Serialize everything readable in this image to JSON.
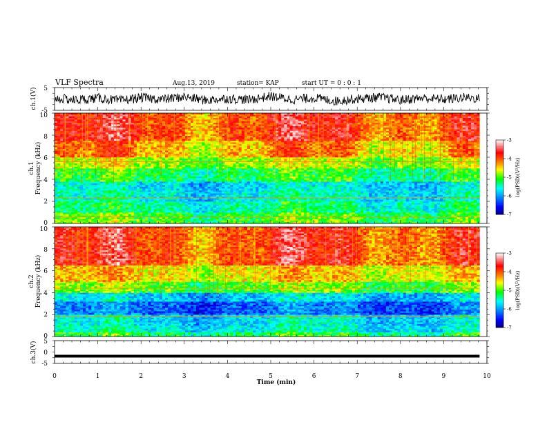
{
  "header": {
    "title": "VLF Spectra",
    "date": "Aug.13, 2019",
    "station": "station= KAP",
    "start_ut": "start  UT  =   0 : 0  : 1"
  },
  "colorbar": {
    "label": "log(PSD)(V²/Hz)",
    "ticks": [
      "-3",
      "-4",
      "-5",
      "-6",
      "-7"
    ],
    "range": [
      -7,
      -3
    ],
    "colors": [
      "#000080",
      "#0000ff",
      "#00a0ff",
      "#00ffff",
      "#00ff00",
      "#ffff00",
      "#ff8000",
      "#ff0000",
      "#ffffff"
    ]
  },
  "chart_data": [
    {
      "type": "line",
      "title": "",
      "ylabel": "ch.1(V)",
      "ylim": [
        -5,
        5
      ],
      "yticks": [
        "5",
        "-5"
      ],
      "xlim": [
        0,
        10
      ],
      "description_series": [
        {
          "x": [
            0,
            0.5,
            1,
            1.5,
            2,
            2.5,
            3,
            3.5,
            4,
            4.5,
            5,
            5.5,
            6,
            6.5,
            7,
            7.5,
            8,
            8.5,
            9,
            9.5,
            9.83
          ],
          "values": [
            0.3,
            -0.5,
            0.4,
            -0.8,
            0.6,
            -0.2,
            0.9,
            -0.6,
            0.2,
            -0.4,
            1.2,
            -0.3,
            0.5,
            -0.9,
            0.1,
            0.7,
            -0.5,
            0.4,
            -0.2,
            0.6,
            0.2
          ]
        }
      ]
    },
    {
      "type": "heatmap",
      "title": "",
      "ylabel": "ch.1\nFrequency  (kHz)",
      "ylabel_lines": [
        "ch.1",
        "Frequency  (kHz)"
      ],
      "ylim": [
        0,
        10
      ],
      "yticks": [
        "0",
        "2",
        "4",
        "6",
        "8",
        "10"
      ],
      "xlim": [
        0,
        10
      ],
      "x_end": 9.83,
      "bands_kHz": [
        {
          "from": 0,
          "to": 0.4,
          "log_psd": -5.0
        },
        {
          "from": 0.4,
          "to": 1.0,
          "log_psd": -5.1
        },
        {
          "from": 1.0,
          "to": 2.0,
          "log_psd": -5.4
        },
        {
          "from": 2.0,
          "to": 3.0,
          "log_psd": -5.6
        },
        {
          "from": 3.0,
          "to": 3.8,
          "log_psd": -5.7
        },
        {
          "from": 3.8,
          "to": 5.0,
          "log_psd": -5.2
        },
        {
          "from": 5.0,
          "to": 6.0,
          "log_psd": -4.8
        },
        {
          "from": 6.0,
          "to": 7.5,
          "log_psd": -4.3
        },
        {
          "from": 7.5,
          "to": 10.0,
          "log_psd": -3.9
        }
      ],
      "lines_kHz": [
        5.6,
        2.3,
        0.6
      ]
    },
    {
      "type": "heatmap",
      "title": "",
      "ylabel": "ch.2\nFrequency  (kHz)",
      "ylabel_lines": [
        "ch.2",
        "Frequency  (kHz)"
      ],
      "ylim": [
        0,
        10
      ],
      "yticks": [
        "0",
        "2",
        "4",
        "6",
        "8",
        "10"
      ],
      "xlim": [
        0,
        10
      ],
      "x_end": 9.83,
      "bands_kHz": [
        {
          "from": 0,
          "to": 0.4,
          "log_psd": -5.2
        },
        {
          "from": 0.4,
          "to": 1.0,
          "log_psd": -5.6
        },
        {
          "from": 1.0,
          "to": 2.0,
          "log_psd": -5.7
        },
        {
          "from": 2.0,
          "to": 3.2,
          "log_psd": -6.2
        },
        {
          "from": 3.2,
          "to": 4.0,
          "log_psd": -5.8
        },
        {
          "from": 4.0,
          "to": 5.0,
          "log_psd": -5.0
        },
        {
          "from": 5.0,
          "to": 6.5,
          "log_psd": -4.5
        },
        {
          "from": 6.5,
          "to": 10.0,
          "log_psd": -3.9
        }
      ],
      "lines_kHz": [
        4.4,
        1.8
      ]
    },
    {
      "type": "line",
      "title": "",
      "ylabel": "ch.3(V)",
      "ylim": [
        -5,
        5
      ],
      "yticks": [
        "5",
        "0",
        "-5"
      ],
      "xlim": [
        0,
        10
      ],
      "xlabel": "Time  (min)",
      "xticks": [
        "0",
        "1",
        "2",
        "3",
        "4",
        "5",
        "6",
        "7",
        "8",
        "9",
        "10"
      ],
      "series": [
        {
          "x": [
            0,
            9.83
          ],
          "values": [
            -1.8,
            -1.8
          ]
        }
      ]
    }
  ]
}
